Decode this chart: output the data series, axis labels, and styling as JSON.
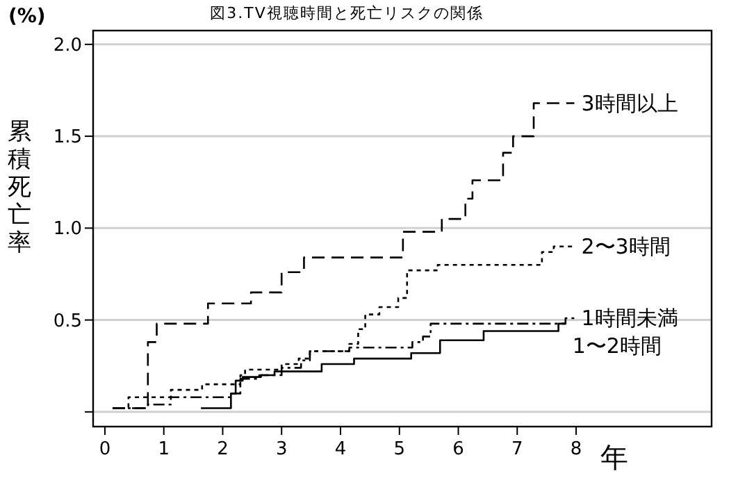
{
  "chart_data": {
    "type": "step",
    "title": "図3.TV視聴時間と死亡リスクの関係",
    "xlabel": "年",
    "ylabel": "累積死亡率",
    "annotations": [
      "(%)"
    ],
    "xlim": [
      -0.2,
      10.3
    ],
    "xticks": [
      0,
      1,
      2,
      3,
      4,
      5,
      6,
      7,
      8
    ],
    "ylim": [
      -0.08,
      2.075
    ],
    "yticks": [
      {
        "value": 0,
        "label": null
      },
      {
        "value": 0.5,
        "label": "0.5"
      },
      {
        "value": 1,
        "label": "1.0"
      },
      {
        "value": 1.5,
        "label": "1.5"
      },
      {
        "value": 2,
        "label": "2.0"
      }
    ],
    "grid": "y",
    "series": [
      {
        "name": "3時間以上",
        "color": "#000000",
        "line_style": "dashed",
        "x": [
          0.13,
          0.73,
          0.88,
          1.75,
          2.48,
          3.0,
          3.38,
          5.06,
          5.72,
          6.12,
          6.24,
          6.76,
          6.93,
          7.28,
          7.97
        ],
        "values": [
          0.02,
          0.38,
          0.48,
          0.59,
          0.65,
          0.76,
          0.84,
          0.98,
          1.05,
          1.16,
          1.26,
          1.41,
          1.5,
          1.68,
          1.68
        ]
      },
      {
        "name": "2〜3時間",
        "color": "#000000",
        "line_style": "dotted",
        "x": [
          0.13,
          0.4,
          1.12,
          1.65,
          2.3,
          2.38,
          3.0,
          3.29,
          3.48,
          4.15,
          4.3,
          4.42,
          4.66,
          4.98,
          5.13,
          5.65,
          7.42,
          7.62,
          7.97
        ],
        "values": [
          0.02,
          0.08,
          0.12,
          0.15,
          0.2,
          0.23,
          0.26,
          0.29,
          0.33,
          0.37,
          0.45,
          0.53,
          0.57,
          0.62,
          0.77,
          0.8,
          0.87,
          0.9,
          0.9
        ]
      },
      {
        "name": "1時間未満",
        "color": "#000000",
        "line_style": "dashdot",
        "x": [
          0.13,
          0.73,
          1.12,
          2.14,
          2.3,
          2.62,
          3.0,
          3.33,
          3.48,
          4.15,
          5.22,
          5.4,
          5.53,
          7.82,
          7.97
        ],
        "values": [
          0.02,
          0.04,
          0.08,
          0.1,
          0.18,
          0.2,
          0.24,
          0.28,
          0.33,
          0.35,
          0.38,
          0.41,
          0.48,
          0.51,
          0.51
        ]
      },
      {
        "name": "1〜2時間",
        "color": "#000000",
        "line_style": "solid",
        "x": [
          1.63,
          2.14,
          2.22,
          2.34,
          2.65,
          2.88,
          3.68,
          4.23,
          5.2,
          5.69,
          6.43,
          7.7,
          7.82
        ],
        "values": [
          0.02,
          0.1,
          0.17,
          0.19,
          0.2,
          0.22,
          0.26,
          0.29,
          0.32,
          0.39,
          0.44,
          0.48,
          0.48
        ]
      }
    ]
  }
}
